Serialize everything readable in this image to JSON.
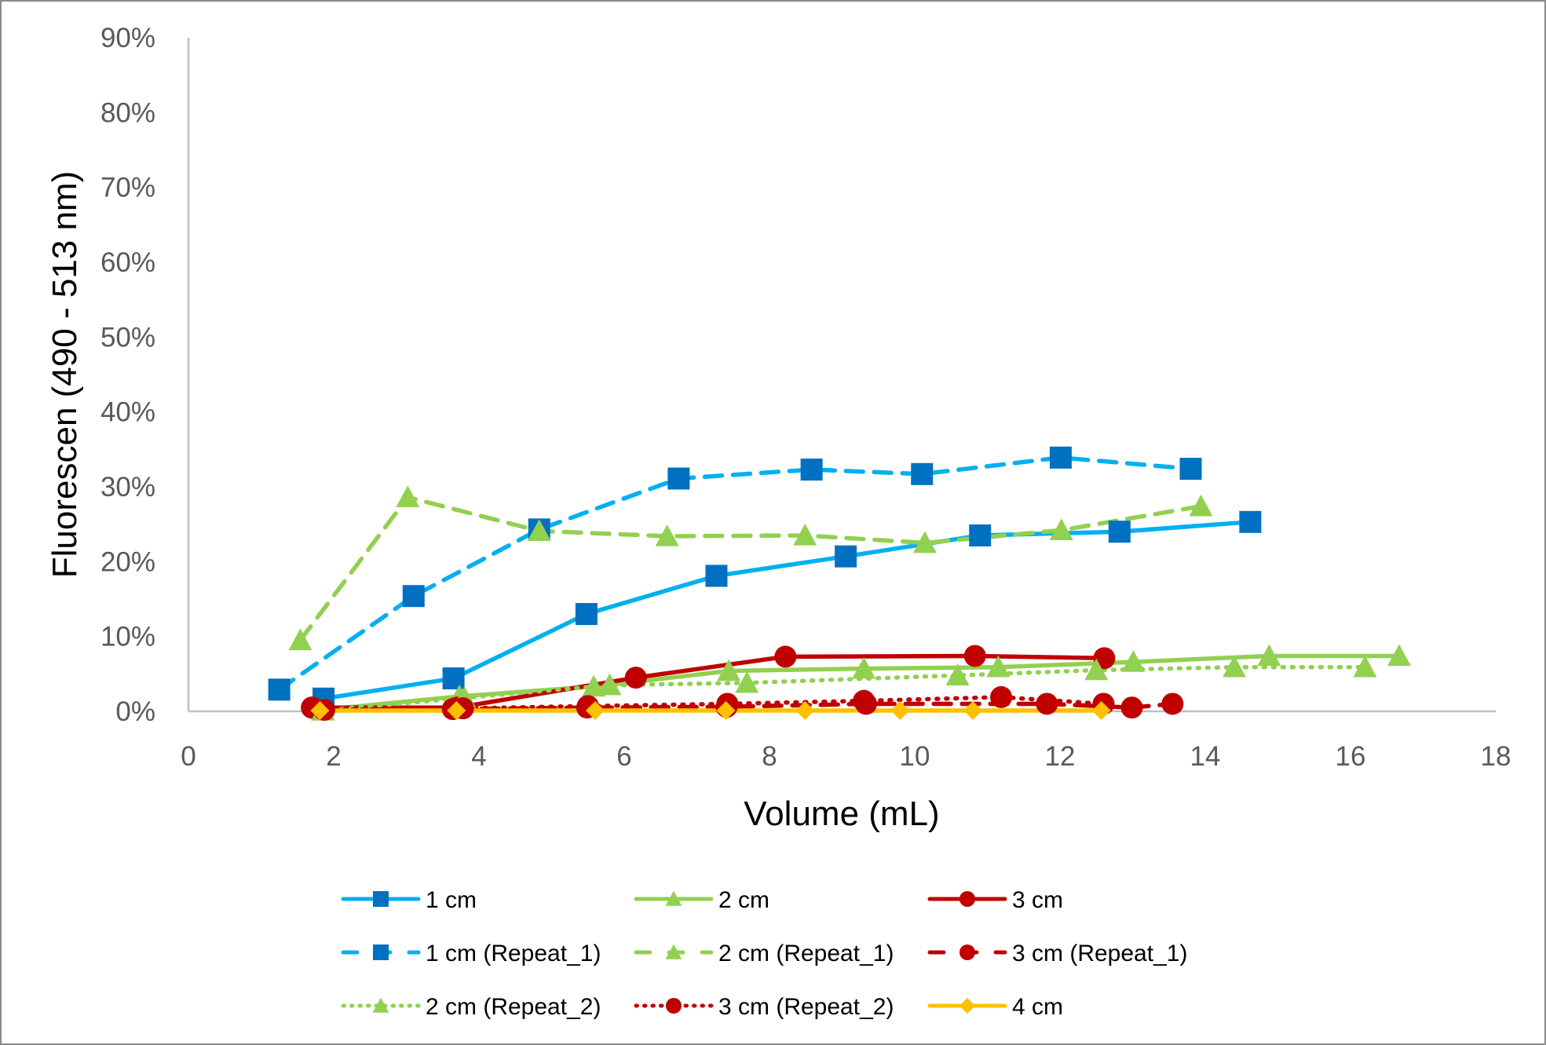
{
  "chart_data": {
    "type": "line",
    "title": "",
    "xlabel": "Volume (mL)",
    "ylabel": "Fluorescen (490 - 513 nm)",
    "xlim": [
      0,
      18
    ],
    "ylim": [
      0,
      90
    ],
    "x_ticks": [
      0,
      2,
      4,
      6,
      8,
      10,
      12,
      14,
      16,
      18
    ],
    "y_ticks": [
      "0%",
      "10%",
      "20%",
      "30%",
      "40%",
      "50%",
      "60%",
      "70%",
      "80%",
      "90%"
    ],
    "y_unit": "%",
    "grid": false,
    "legend_position": "bottom",
    "series": [
      {
        "name": "1 cm",
        "line_color": "#00B0F0",
        "marker_color": "#0070C0",
        "line_style": "solid",
        "marker": "square",
        "x": [
          1.86,
          3.65,
          5.48,
          7.27,
          9.05,
          10.9,
          12.82,
          14.62
        ],
        "y": [
          1.7,
          4.4,
          13.0,
          18.1,
          20.7,
          23.5,
          24.0,
          25.3
        ]
      },
      {
        "name": "2 cm",
        "line_color": "#92D050",
        "marker_color": "#92D050",
        "line_style": "solid",
        "marker": "triangle",
        "x": [
          1.85,
          3.73,
          5.58,
          7.44,
          9.3,
          11.15,
          13.01,
          14.88,
          16.67
        ],
        "y": [
          0.2,
          2.0,
          3.3,
          5.4,
          5.7,
          5.9,
          6.6,
          7.4,
          7.4
        ]
      },
      {
        "name": "3 cm",
        "line_color": "#C00000",
        "marker_color": "#C00000",
        "line_style": "solid",
        "marker": "circle",
        "x": [
          1.7,
          3.7,
          6.16,
          8.22,
          10.83,
          12.61
        ],
        "y": [
          0.5,
          0.5,
          4.5,
          7.3,
          7.4,
          7.1
        ]
      },
      {
        "name": "1 cm (Repeat_1)",
        "line_color": "#00B0F0",
        "marker_color": "#0070C0",
        "line_style": "dashed",
        "marker": "square",
        "x": [
          1.25,
          3.1,
          4.83,
          6.75,
          8.58,
          10.1,
          12.01,
          13.8
        ],
        "y": [
          2.9,
          15.4,
          24.3,
          31.1,
          32.3,
          31.7,
          33.9,
          32.4
        ]
      },
      {
        "name": "2 cm (Repeat_1)",
        "line_color": "#92D050",
        "marker_color": "#92D050",
        "line_style": "dashed",
        "marker": "triangle",
        "x": [
          1.54,
          3.02,
          4.83,
          6.59,
          8.49,
          10.14,
          12.02,
          13.94
        ],
        "y": [
          9.5,
          28.6,
          24.1,
          23.4,
          23.5,
          22.5,
          24.2,
          27.4
        ]
      },
      {
        "name": "3 cm  (Repeat_1)",
        "line_color": "#C00000",
        "marker_color": "#C00000",
        "line_style": "dashed",
        "marker": "circle",
        "x": [
          1.7,
          3.64,
          5.49,
          7.41,
          9.33,
          11.82,
          12.99,
          13.55
        ],
        "y": [
          0.5,
          0.3,
          0.5,
          0.6,
          1.0,
          1.0,
          0.5,
          1.0
        ]
      },
      {
        "name": "2 cm (Repeat_2)",
        "line_color": "#92D050",
        "marker_color": "#92D050",
        "line_style": "dotted",
        "marker": "triangle",
        "x": [
          1.85,
          3.8,
          5.8,
          7.69,
          10.59,
          12.5,
          14.4,
          16.2
        ],
        "y": [
          0.1,
          1.8,
          3.5,
          3.8,
          4.8,
          5.5,
          5.9,
          5.9
        ]
      },
      {
        "name": "3 cm (Repeat_2)",
        "line_color": "#C00000",
        "marker_color": "#C00000",
        "line_style": "dotted",
        "marker": "circle",
        "x": [
          1.87,
          3.78,
          5.5,
          7.42,
          9.3,
          11.19,
          12.6
        ],
        "y": [
          0.2,
          0.4,
          0.7,
          1.0,
          1.4,
          1.9,
          1.0
        ]
      },
      {
        "name": "4 cm",
        "line_color": "#FFC000",
        "marker_color": "#FFC000",
        "line_style": "solid",
        "marker": "diamond",
        "x": [
          1.81,
          3.69,
          5.6,
          7.4,
          8.49,
          9.8,
          10.8,
          12.57
        ],
        "y": [
          0.1,
          0.1,
          0.1,
          0.1,
          0.1,
          0.1,
          0.1,
          0.1
        ]
      }
    ]
  },
  "legend": {
    "rows": [
      [
        "1 cm",
        "2 cm",
        "3 cm"
      ],
      [
        "1 cm (Repeat_1)",
        "2 cm (Repeat_1)",
        "3 cm  (Repeat_1)"
      ],
      [
        "2 cm (Repeat_2)",
        "3 cm (Repeat_2)",
        "4 cm"
      ]
    ]
  },
  "colors": {
    "axis": "#BFBFBF",
    "tick_text": "#595959",
    "frame": "#8A8A8A"
  }
}
